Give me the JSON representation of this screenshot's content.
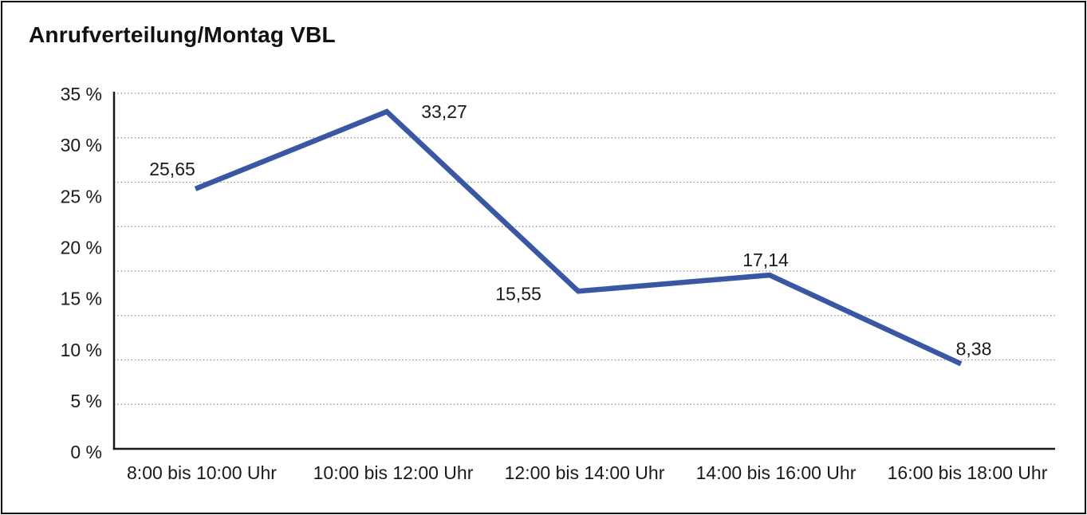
{
  "chart_data": {
    "type": "line",
    "title": "Anrufverteilung/Montag VBL",
    "categories": [
      "8:00 bis 10:00 Uhr",
      "10:00 bis 12:00 Uhr",
      "12:00 bis 14:00 Uhr",
      "14:00 bis 16:00 Uhr",
      "16:00 bis 18:00 Uhr"
    ],
    "series": [
      {
        "name": "Anrufverteilung Montag VBL",
        "values": [
          25.65,
          33.27,
          15.55,
          17.14,
          8.38
        ],
        "value_labels": [
          "25,65",
          "33,27",
          "15,55",
          "17,14",
          "8,38"
        ],
        "label_offsets": [
          [
            -29,
            -25
          ],
          [
            72,
            0
          ],
          [
            -75,
            3
          ],
          [
            -5,
            -19
          ],
          [
            16,
            -19
          ]
        ]
      }
    ],
    "xlabel": "",
    "ylabel": "",
    "y_axis": {
      "tick_labels": [
        "35 %",
        "30 %",
        "25 %",
        "20 %",
        "15 %",
        "10 %",
        "5 %",
        "0 %"
      ],
      "ylim": [
        0,
        35
      ],
      "unit": "%"
    },
    "grid": "horizontal-dotted",
    "gridline_count": 8,
    "legend": "none",
    "colors": {
      "line": "#3A57A3",
      "axis": "#1a1a1a",
      "grid": "#8a8a8a",
      "text": "#1a1a1a",
      "background": "#ffffff",
      "border": "#000000"
    }
  }
}
